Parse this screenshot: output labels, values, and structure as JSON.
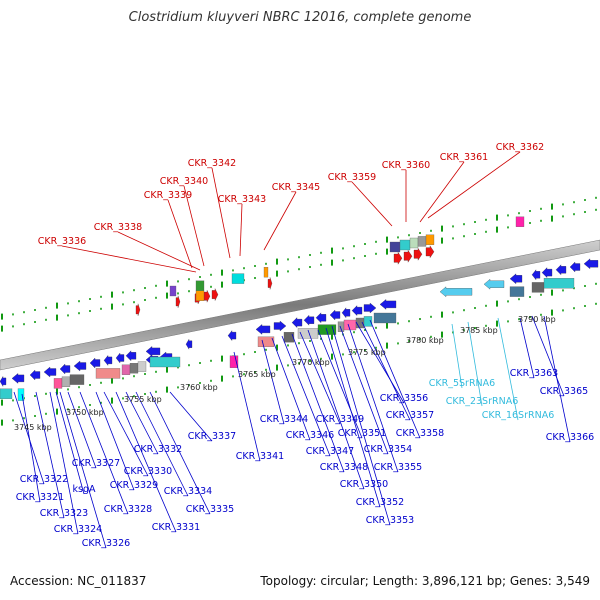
{
  "title": "Clostridium kluyveri NBRC 12016, complete genome",
  "footer": {
    "accession": "Accession: NC_011837",
    "summary": "Topology: circular; Length: 3,896,121 bp; Genes: 3,549"
  },
  "colors": {
    "top_label": "#cc0000",
    "bottom_label": "#0000cc",
    "rna_label": "#33bbdd",
    "axis": "#888888",
    "tick": "#119911"
  },
  "kbp_ticks": [
    "3745 kbp",
    "3750 kbp",
    "3755 kbp",
    "3760 kbp",
    "3765 kbp",
    "3770 kbp",
    "3775 kbp",
    "3780 kbp",
    "3785 kbp",
    "3790 kbp"
  ],
  "top_labels": [
    "CKR_3336",
    "CKR_3338",
    "CKR_3339",
    "CKR_3340",
    "CKR_3342",
    "CKR_3343",
    "CKR_3345",
    "CKR_3359",
    "CKR_3360",
    "CKR_3361",
    "CKR_3362"
  ],
  "bottom_labels": [
    "CKR_3322",
    "CKR_3321",
    "CKR_3323",
    "CKR_3324",
    "CKR_3326",
    "ksgA",
    "CKR_3327",
    "CKR_3328",
    "CKR_3329",
    "CKR_3330",
    "CKR_3331",
    "CKR_3332",
    "CKR_3334",
    "CKR_3335",
    "CKR_3337",
    "CKR_3341",
    "CKR_3344",
    "CKR_3346",
    "CKR_3347",
    "CKR_3348",
    "CKR_3349",
    "CKR_3350",
    "CKR_3351",
    "CKR_3352",
    "CKR_3353",
    "CKR_3354",
    "CKR_3355",
    "CKR_3356",
    "CKR_3357",
    "CKR_3358",
    "CKR_3363",
    "CKR_3365",
    "CKR_3366"
  ],
  "rna_labels": [
    "CKR_5SrRNA6",
    "CKR_23SrRNA6",
    "CKR_16SrRNA6"
  ]
}
